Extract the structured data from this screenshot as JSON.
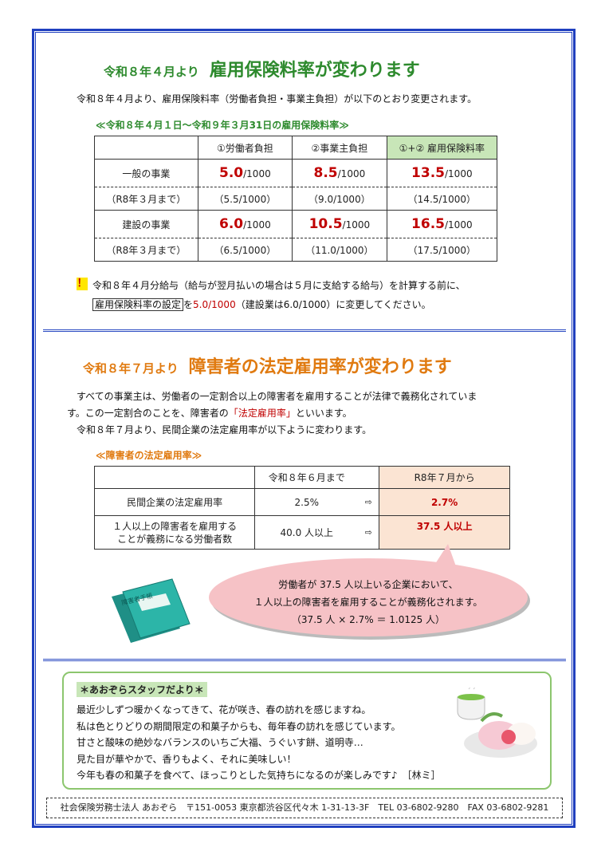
{
  "section1": {
    "title_prefix": "令和８年４月より",
    "title_main": "雇用保険料率が変わります",
    "intro": "令和８年４月より、雇用保険料率（労働者負担・事業主負担）が以下のとおり変更されます。",
    "subheading": "≪令和８年４月１日～令和９年３月31日の雇用保険料率≫",
    "table": {
      "headers": [
        "",
        "①労働者負担",
        "②事業主負担",
        "①+② 雇用保険料率"
      ],
      "rows": [
        {
          "label": "一般の事業",
          "new": [
            "5.0",
            "8.5",
            "13.5"
          ],
          "unit": "/1000",
          "prev_label": "（R8年３月まで）",
          "prev": [
            "（5.5/1000）",
            "（9.0/1000）",
            "（14.5/1000）"
          ]
        },
        {
          "label": "建設の事業",
          "new": [
            "6.0",
            "10.5",
            "16.5"
          ],
          "unit": "/1000",
          "prev_label": "（R8年３月まで）",
          "prev": [
            "（6.5/1000）",
            "（11.0/1000）",
            "（17.5/1000）"
          ]
        }
      ]
    },
    "note_mark": "！",
    "note_line1": "令和８年４月分給与（給与が翌月払いの場合は５月に支給する給与）を計算する前に、",
    "note_line2_a": "雇用保険料率の設定",
    "note_line2_b": "を",
    "note_line2_c": "5.0/1000",
    "note_line2_d": "（建設業は6.0/1000）に変更してください。"
  },
  "section2": {
    "title_prefix": "令和８年７月より",
    "title_main": "障害者の法定雇用率が変わります",
    "para1": "　すべての事業主は、労働者の一定割合以上の障害者を雇用することが法律で義務化されていま",
    "para2a": "す。この一定割合のことを、障害者の",
    "para2b": "「法定雇用率」",
    "para2c": "といいます。",
    "para3": "　令和８年７月より、民間企業の法定雇用率が以下ように変わります。",
    "subheading": "≪障害者の法定雇用率≫",
    "table": {
      "headers": [
        "",
        "令和８年６月まで",
        "R8年７月から"
      ],
      "rows": [
        {
          "label": "民間企業の法定雇用率",
          "before": "2.5%",
          "after": "2.7%"
        },
        {
          "label1": "１人以上の障害者を雇用する",
          "label2": "ことが義務になる労働者数",
          "before": "40.0 人以上",
          "after": "37.5 人以上"
        }
      ],
      "arrow": "⇨"
    },
    "notebook_label": "障害者手帳",
    "bubble": [
      "労働者が 37.5 人以上いる企業において、",
      "１人以上の障害者を雇用することが義務化されます。",
      "（37.5 人 × 2.7% ＝ 1.0125 人）"
    ]
  },
  "staff": {
    "title": "＊あおぞらスタッフだより＊",
    "lines": [
      "最近少しずつ暖かくなってきて、花が咲き、春の訪れを感じますね。",
      "私は色とりどりの期間限定の和菓子からも、毎年春の訪れを感じています。",
      "甘さと酸味の絶妙なバランスのいちご大福、うぐいす餅、道明寺…",
      "見た目が華やかで、香りもよく、それに美味しい！",
      "今年も春の和菓子を食べて、ほっこりとした気持ちになるのが楽しみです♪　［林ミ］"
    ]
  },
  "footer": "社会保険労務士法人 あおぞら　〒151-0053 東京都渋谷区代々木 1-31-13-3F　TEL 03-6802-9280　FAX 03-6802-9281",
  "colors": {
    "accent_green": "#2d8a2d",
    "accent_orange": "#e07a10",
    "value_red": "#c00000",
    "frame_blue": "#1f3fbf"
  }
}
